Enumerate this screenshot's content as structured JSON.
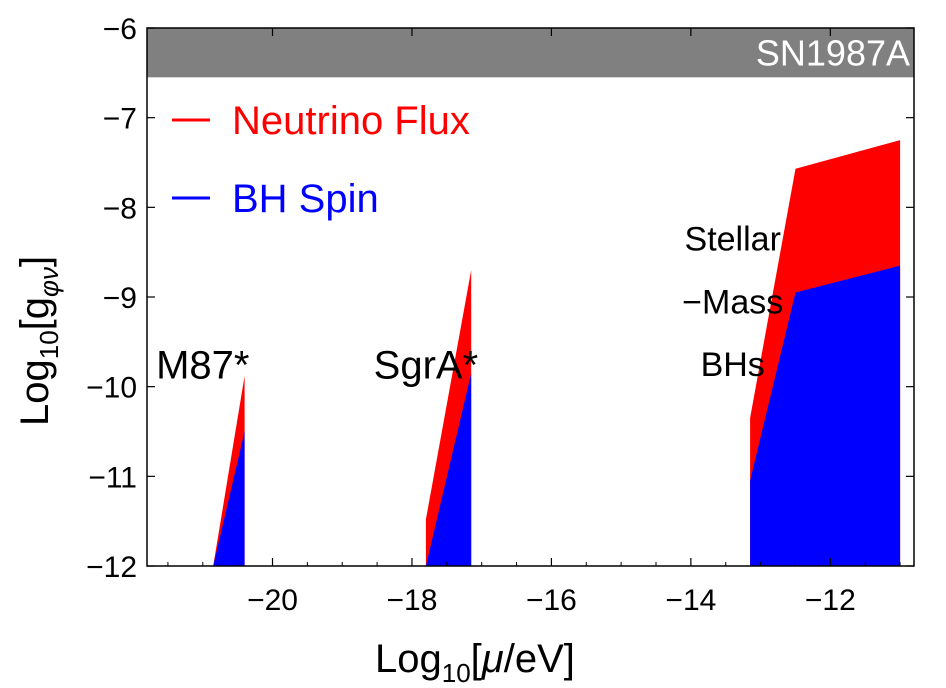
{
  "chart_data": {
    "type": "area",
    "xlabel": "Log10[μ/eV]",
    "ylabel": "Log10[gφν]",
    "xlim": [
      -21.8,
      -10.8
    ],
    "ylim": [
      -12,
      -6
    ],
    "x_ticks": [
      -20,
      -18,
      -16,
      -14,
      -12
    ],
    "y_ticks": [
      -6,
      -7,
      -8,
      -9,
      -10,
      -11,
      -12
    ],
    "x_tick_labels": [
      "−20",
      "−18",
      "−16",
      "−14",
      "−12"
    ],
    "y_tick_labels": [
      "−6",
      "−7",
      "−8",
      "−9",
      "−10",
      "−11",
      "−12"
    ],
    "grid": false,
    "legend_position": "top-left",
    "colors": {
      "neutrino": "#ff0000",
      "spin": "#0000ff",
      "sn_band": "#808080"
    },
    "excluded_band": {
      "name": "SN1987A",
      "y_range": [
        -6.55,
        -6.0
      ]
    },
    "series": [
      {
        "name": "Neutrino Flux",
        "color": "#ff0000",
        "regions": [
          {
            "label": "M87*",
            "x": [
              -20.85,
              -20.4,
              -20.4,
              -20.85
            ],
            "y": [
              -12,
              -12,
              -9.88,
              -12
            ]
          },
          {
            "label": "SgrA*",
            "x": [
              -17.8,
              -17.15,
              -17.15,
              -17.8
            ],
            "y": [
              -12,
              -12,
              -8.7,
              -11.48
            ]
          },
          {
            "label": "Stellar-Mass BHs",
            "x": [
              -13.15,
              -13.15,
              -12.5,
              -11.0,
              -11.0,
              -13.15
            ],
            "y": [
              -12,
              -10.35,
              -7.57,
              -7.25,
              -12,
              -12
            ]
          }
        ]
      },
      {
        "name": "BH Spin",
        "color": "#0000ff",
        "regions": [
          {
            "label": "M87*",
            "x": [
              -20.85,
              -20.4,
              -20.4
            ],
            "y": [
              -12,
              -10.5,
              -12
            ]
          },
          {
            "label": "SgrA*",
            "x": [
              -17.8,
              -17.15,
              -17.15
            ],
            "y": [
              -12,
              -9.85,
              -12
            ]
          },
          {
            "label": "Stellar-Mass BHs",
            "x": [
              -13.15,
              -13.15,
              -12.5,
              -11.0,
              -11.0
            ],
            "y": [
              -12,
              -11.05,
              -8.95,
              -8.65,
              -12
            ]
          }
        ]
      }
    ],
    "annotations": [
      {
        "text": "M87*",
        "x": -21.0,
        "y": -9.75
      },
      {
        "text": "SgrA*",
        "x": -17.8,
        "y": -9.75
      },
      {
        "text": "Stellar",
        "x": -13.4,
        "y": -8.35
      },
      {
        "text": "−Mass",
        "x": -13.4,
        "y": -9.05
      },
      {
        "text": "BHs",
        "x": -13.4,
        "y": -9.75
      }
    ],
    "legend": [
      {
        "label": "Neutrino Flux",
        "color": "#ff0000"
      },
      {
        "label": "BH Spin",
        "color": "#0000ff"
      }
    ],
    "band_label": "SN1987A",
    "xlabel_parts": {
      "base": "Log",
      "sub": "10",
      "arg": "[",
      "mu": "μ",
      "unit": "/eV]"
    },
    "ylabel_parts": {
      "base": "Log",
      "sub": "10",
      "open": "[g",
      "sub2": "φν",
      "close": "]"
    }
  }
}
